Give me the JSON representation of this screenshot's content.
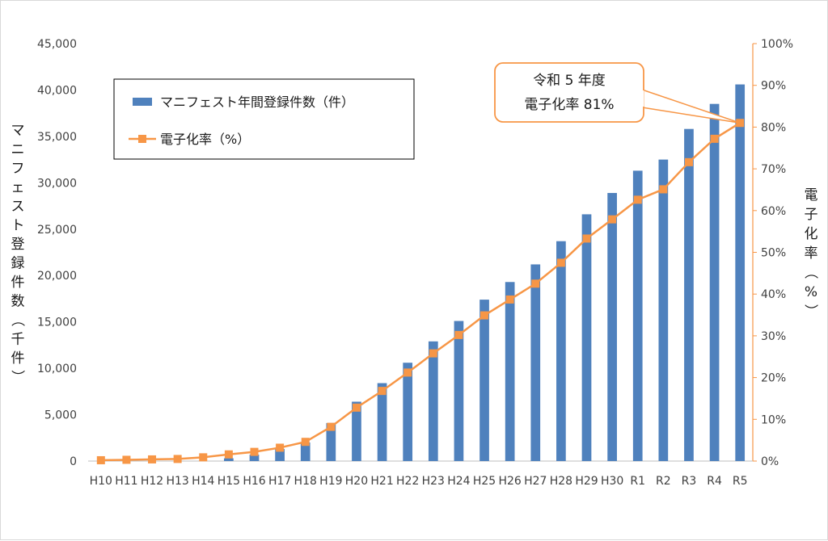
{
  "chart_data": {
    "type": "bar",
    "categories": [
      "H10",
      "H11",
      "H12",
      "H13",
      "H14",
      "H15",
      "H16",
      "H17",
      "H18",
      "H19",
      "H20",
      "H21",
      "H22",
      "H23",
      "H24",
      "H25",
      "H26",
      "H27",
      "H28",
      "H29",
      "H30",
      "R1",
      "R2",
      "R3",
      "R4",
      "R5"
    ],
    "series": [
      {
        "name": "マニフェスト年間登録件数（件）",
        "type": "bar",
        "axis": "left",
        "color": "#4f81bd",
        "values": [
          0,
          0,
          0,
          0,
          0,
          300,
          700,
          1300,
          2000,
          4100,
          6400,
          8400,
          10600,
          12900,
          15100,
          17400,
          19300,
          21200,
          23700,
          26600,
          28900,
          31300,
          32500,
          35800,
          38500,
          40600
        ]
      },
      {
        "name": "電子化率（%）",
        "type": "line",
        "axis": "right",
        "color": "#f79646",
        "values": [
          0.2,
          0.3,
          0.4,
          0.5,
          0.9,
          1.6,
          2.2,
          3.2,
          4.6,
          8.2,
          12.8,
          16.8,
          21.2,
          25.8,
          30.2,
          34.9,
          38.7,
          42.5,
          47.5,
          53.3,
          57.9,
          62.6,
          65.1,
          71.6,
          77.2,
          81.0
        ]
      }
    ],
    "y_left": {
      "label": "マニフェスト登録件数（千件）",
      "min": 0,
      "max": 45000,
      "step": 5000,
      "ticks": [
        "0",
        "5,000",
        "10,000",
        "15,000",
        "20,000",
        "25,000",
        "30,000",
        "35,000",
        "40,000",
        "45,000"
      ]
    },
    "y_right": {
      "label": "電子化率（%）",
      "min": 0,
      "max": 100,
      "step": 10,
      "ticks": [
        "0%",
        "10%",
        "20%",
        "30%",
        "40%",
        "50%",
        "60%",
        "70%",
        "80%",
        "90%",
        "100%"
      ]
    },
    "grid": false,
    "legend": {
      "position": "top-left",
      "items": [
        "マニフェスト年間登録件数（件）",
        "電子化率（%）"
      ]
    },
    "annotation": {
      "line1": "令和 5 年度",
      "line2": "電子化率 81%",
      "target_category": "R5",
      "target_value": 81.0
    }
  }
}
